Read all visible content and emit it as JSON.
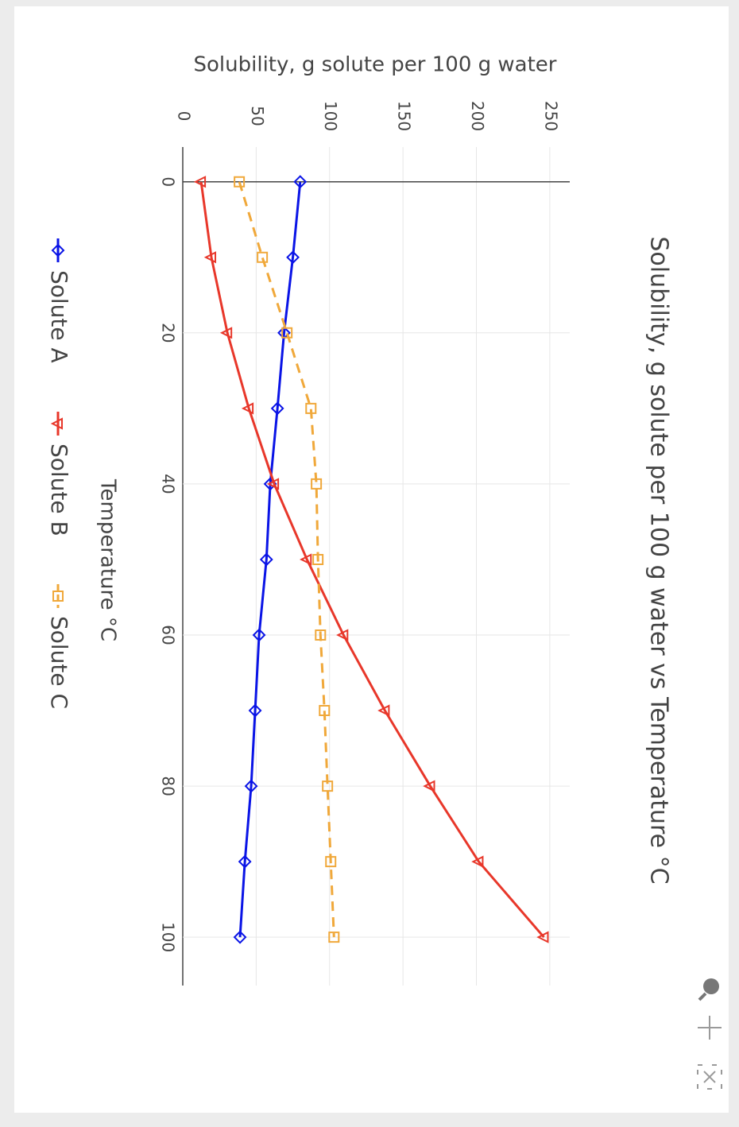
{
  "chart_data": {
    "type": "line",
    "title": "Solubility, g solute per 100 g water vs Temperature °C",
    "x_label": "Temperature °C",
    "y_label": "Solubility, g solute per 100 g water",
    "x": [
      0,
      10,
      20,
      30,
      40,
      50,
      60,
      70,
      80,
      90,
      100
    ],
    "series": [
      {
        "name": "Solute A",
        "color": "#0a14e6",
        "marker": "diamond",
        "dash": "solid",
        "values": [
          80,
          75,
          69,
          64.5,
          59.6,
          57,
          52,
          49.3,
          46.6,
          42.3,
          39
        ]
      },
      {
        "name": "Solute B",
        "color": "#e8372a",
        "marker": "triangle",
        "dash": "solid",
        "values": [
          12.5,
          19.5,
          30.4,
          45,
          62.3,
          84.6,
          109.5,
          137.7,
          168.6,
          201.6,
          246
        ]
      },
      {
        "name": "Solute C",
        "color": "#f0a83a",
        "marker": "square",
        "dash": "dash",
        "values": [
          38.5,
          54.2,
          71,
          87.3,
          91,
          92.1,
          93.8,
          96.5,
          98.6,
          100.8,
          103
        ]
      }
    ],
    "xlim": [
      -4.6,
      106.4
    ],
    "ylim": [
      0,
      263.6
    ],
    "xticks": [
      0,
      20,
      40,
      60,
      80,
      100
    ],
    "yticks": [
      0,
      50,
      100,
      150,
      200,
      250
    ],
    "grid": true
  }
}
